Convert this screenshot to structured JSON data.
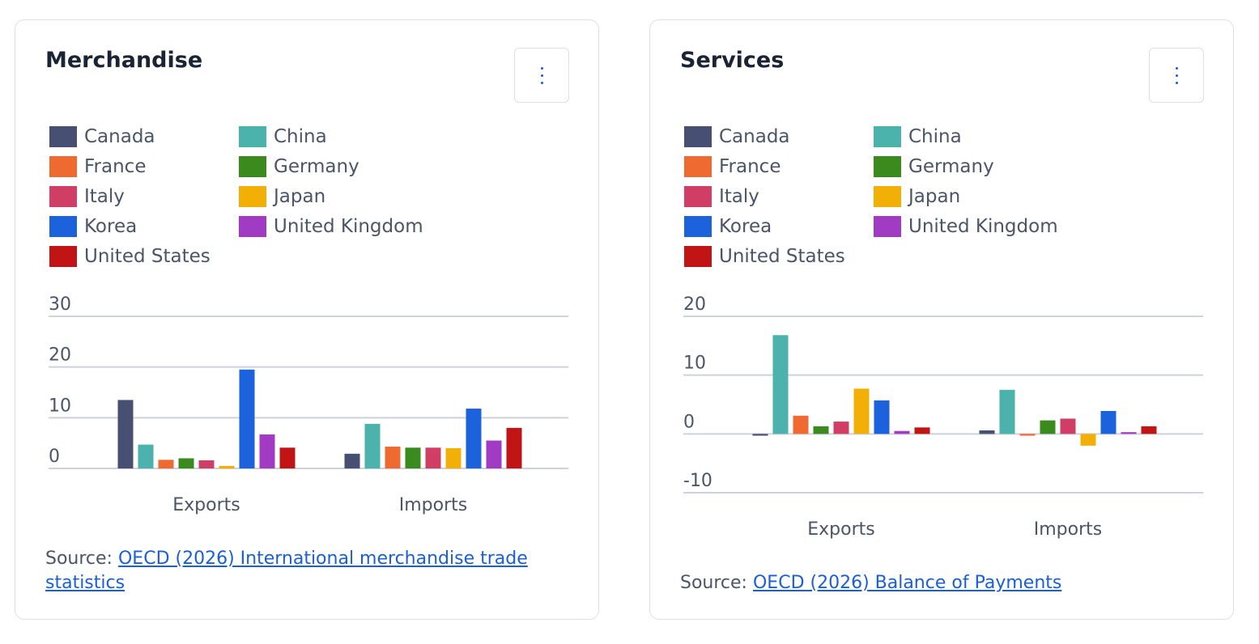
{
  "panels": [
    {
      "title": "Merchandise",
      "menu_icon": "kebab-menu-icon",
      "source_prefix": "Source:",
      "source_link": "OECD (2026) International merchandise trade statistics",
      "chart_data": {
        "type": "bar",
        "categories": [
          "Exports",
          "Imports"
        ],
        "ylim": [
          0,
          30
        ],
        "yticks": [
          0,
          10,
          20,
          30
        ],
        "grid": true,
        "legend_position": "top",
        "series": [
          {
            "name": "Canada",
            "color": "#475073",
            "values": [
              13.5,
              2.9
            ]
          },
          {
            "name": "China",
            "color": "#4cb3ac",
            "values": [
              4.7,
              8.8
            ]
          },
          {
            "name": "France",
            "color": "#ef6a30",
            "values": [
              1.7,
              4.3
            ]
          },
          {
            "name": "Germany",
            "color": "#3a8a1e",
            "values": [
              2.0,
              4.1
            ]
          },
          {
            "name": "Italy",
            "color": "#d03e66",
            "values": [
              1.6,
              4.1
            ]
          },
          {
            "name": "Japan",
            "color": "#f2b007",
            "values": [
              0.5,
              4.0
            ]
          },
          {
            "name": "Korea",
            "color": "#1b62dc",
            "values": [
              19.5,
              11.8
            ]
          },
          {
            "name": "United Kingdom",
            "color": "#a13bc4",
            "values": [
              6.7,
              5.5
            ]
          },
          {
            "name": "United States",
            "color": "#c11515",
            "values": [
              4.1,
              8.0
            ]
          }
        ]
      }
    },
    {
      "title": "Services",
      "menu_icon": "kebab-menu-icon",
      "source_prefix": "Source:",
      "source_link": "OECD (2026) Balance of Payments",
      "chart_data": {
        "type": "bar",
        "categories": [
          "Exports",
          "Imports"
        ],
        "ylim": [
          -10,
          20
        ],
        "yticks": [
          -10,
          0,
          10,
          20
        ],
        "grid": true,
        "legend_position": "top",
        "series": [
          {
            "name": "Canada",
            "color": "#475073",
            "values": [
              -0.3,
              0.6
            ]
          },
          {
            "name": "China",
            "color": "#4cb3ac",
            "values": [
              16.8,
              7.5
            ]
          },
          {
            "name": "France",
            "color": "#ef6a30",
            "values": [
              3.1,
              -0.3
            ]
          },
          {
            "name": "Germany",
            "color": "#3a8a1e",
            "values": [
              1.3,
              2.3
            ]
          },
          {
            "name": "Italy",
            "color": "#d03e66",
            "values": [
              2.1,
              2.6
            ]
          },
          {
            "name": "Japan",
            "color": "#f2b007",
            "values": [
              7.7,
              -2.0
            ]
          },
          {
            "name": "Korea",
            "color": "#1b62dc",
            "values": [
              5.7,
              3.9
            ]
          },
          {
            "name": "United Kingdom",
            "color": "#a13bc4",
            "values": [
              0.5,
              0.3
            ]
          },
          {
            "name": "United States",
            "color": "#c11515",
            "values": [
              1.1,
              1.3
            ]
          }
        ]
      }
    }
  ]
}
